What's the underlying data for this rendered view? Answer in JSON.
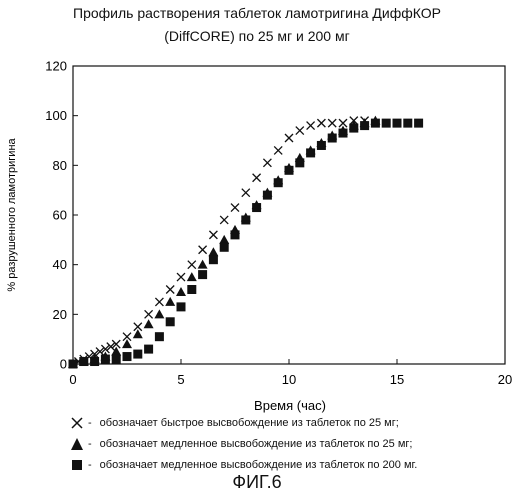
{
  "title_line1": "Профиль растворения таблеток ламотригина ДиффКОР",
  "title_line2": "(DiffCORE)  по  25 мг и  200 мг",
  "caption": "ФИГ.6",
  "legend": [
    {
      "symbol": "x",
      "dash": "-",
      "text": "обозначает быстрое высвобождение из таблеток по 25 мг;"
    },
    {
      "symbol": "triangle",
      "dash": "-",
      "text": "обозначает медленное высвобождение из таблеток по 25 мг;"
    },
    {
      "symbol": "square",
      "dash": "-",
      "text": "обозначает медленное высвобождение из таблеток по 200 мг."
    }
  ],
  "chart_data": {
    "type": "scatter",
    "xlabel": "Время (час)",
    "ylabel": "% разрушенного ламотригина",
    "xlim": [
      0,
      20
    ],
    "ylim": [
      0,
      120
    ],
    "xticks": [
      "0",
      "5",
      "10",
      "15",
      "20"
    ],
    "yticks": [
      "0",
      "20",
      "40",
      "60",
      "80",
      "100",
      "120"
    ],
    "grid": false,
    "series": [
      {
        "marker": "x",
        "x": [
          0,
          0.25,
          0.5,
          0.75,
          1,
          1.25,
          1.5,
          1.75,
          2,
          2.5,
          3,
          3.5,
          4,
          4.5,
          5,
          5.5,
          6,
          6.5,
          7,
          7.5,
          8,
          8.5,
          9,
          9.5,
          10,
          10.5,
          11,
          11.5,
          12,
          12.5,
          13,
          13.5
        ],
        "y": [
          0,
          1,
          2,
          3,
          4,
          5,
          6,
          7,
          8,
          11,
          15,
          20,
          25,
          30,
          35,
          40,
          46,
          52,
          58,
          63,
          69,
          75,
          81,
          86,
          91,
          94,
          96,
          97,
          97,
          97,
          98,
          98
        ]
      },
      {
        "marker": "triangle",
        "x": [
          0,
          0.5,
          1,
          1.5,
          2,
          2.5,
          3,
          3.5,
          4,
          4.5,
          5,
          5.5,
          6,
          6.5,
          7,
          7.5,
          8,
          8.5,
          9,
          9.5,
          10,
          10.5,
          11,
          11.5,
          12,
          12.5,
          13,
          13.5,
          14
        ],
        "y": [
          0,
          1,
          2,
          3,
          5,
          8,
          12,
          16,
          20,
          25,
          29,
          35,
          40,
          45,
          50,
          54,
          59,
          64,
          69,
          74,
          79,
          83,
          86,
          89,
          92,
          94,
          96,
          97,
          98
        ]
      },
      {
        "marker": "square",
        "x": [
          0,
          0.5,
          1,
          1.5,
          2,
          2.5,
          3,
          3.5,
          4,
          4.5,
          5,
          5.5,
          6,
          6.5,
          7,
          7.5,
          8,
          8.5,
          9,
          9.5,
          10,
          10.5,
          11,
          11.5,
          12,
          12.5,
          13,
          13.5,
          14,
          14.5,
          15,
          15.5,
          16
        ],
        "y": [
          0,
          1,
          1,
          2,
          2,
          3,
          4,
          6,
          11,
          17,
          23,
          30,
          36,
          42,
          47,
          52,
          58,
          63,
          68,
          73,
          78,
          81,
          85,
          88,
          91,
          93,
          95,
          96,
          97,
          97,
          97,
          97,
          97
        ]
      }
    ]
  }
}
